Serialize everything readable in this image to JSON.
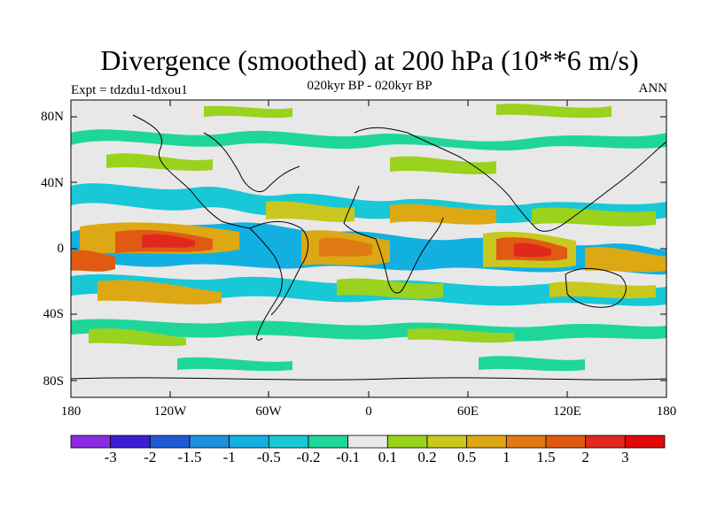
{
  "title": "Divergence (smoothed) at 200 hPa (10**6 m/s)",
  "subtitle": "020kyr BP - 020kyr BP",
  "experiment": "Expt = tdzdu1-tdxou1",
  "season": "ANN",
  "lat_labels": [
    "80N",
    "40N",
    "0",
    "40S",
    "80S"
  ],
  "lon_labels": [
    "180",
    "120W",
    "60W",
    "0",
    "60E",
    "120E",
    "180"
  ],
  "colorbar": {
    "labels": [
      "-3",
      "-2",
      "-1.5",
      "-1",
      "-0.5",
      "-0.2",
      "-0.1",
      "0.1",
      "0.2",
      "0.5",
      "1",
      "1.5",
      "2",
      "3"
    ],
    "colors": [
      "#8a2be2",
      "#3a1fd6",
      "#1e5ad6",
      "#1e8fdc",
      "#12b0e0",
      "#18c8d6",
      "#1fd69a",
      "#e8e8e8",
      "#9ad21e",
      "#c8c81e",
      "#dca814",
      "#e07a14",
      "#e05a14",
      "#e0281e",
      "#e00a0a"
    ]
  },
  "map_colors": {
    "background": "#e8e8e8",
    "coast": "#000000"
  }
}
